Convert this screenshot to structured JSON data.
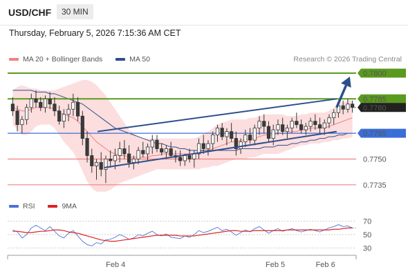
{
  "header": {
    "symbol": "USD/CHF",
    "timeframe": "30 MIN",
    "datetime": "Thursday, February 5, 2026 7:15:36 AM CET"
  },
  "legend": {
    "ma20_label": "MA 20 + Bollinger Bands",
    "ma50_label": "MA 50",
    "copyright": "Research © 2026 Trading Central"
  },
  "rsi_legend": {
    "rsi_label": "RSI",
    "ma9_label": "9MA"
  },
  "colors": {
    "bull_candle": "#3a3a3a",
    "bear_candle": "#3a3a3a",
    "bollinger_fill": "#fbd3d3",
    "ma20": "#f08080",
    "ma50": "#2c4f8c",
    "resistance": "#5a9a1e",
    "support": "#3a6fd8",
    "minor_support": "#f08080",
    "channel": "#2c4f8c",
    "rsi": "#4a72d6",
    "rsi_ma": "#e02020"
  },
  "chart_data": [
    {
      "type": "candlestick",
      "symbol": "USD/CHF",
      "timeframe": "30 MIN",
      "x_labels": [
        "Feb 4",
        "Feb 5",
        "Feb 6"
      ],
      "y_range": [
        0.77285,
        0.7804
      ],
      "levels": [
        {
          "value": 0.78,
          "label": "0.7800",
          "kind": "resistance",
          "style": "filled-green"
        },
        {
          "value": 0.7785,
          "label": "0.7785",
          "kind": "resistance",
          "style": "filled-green"
        },
        {
          "value": 0.778,
          "label": "0.7780",
          "kind": "current-price",
          "style": "filled-dark"
        },
        {
          "value": 0.7765,
          "label": "0.7765",
          "kind": "pivot",
          "style": "filled-blue"
        },
        {
          "value": 0.775,
          "label": "0.7750",
          "kind": "support",
          "style": "text-red"
        },
        {
          "value": 0.7735,
          "label": "0.7735",
          "kind": "support",
          "style": "text-red"
        }
      ],
      "candles_ohlc": [
        [
          0.7782,
          0.7786,
          0.7775,
          0.7778
        ],
        [
          0.7778,
          0.7781,
          0.7766,
          0.777
        ],
        [
          0.777,
          0.7775,
          0.7765,
          0.7773
        ],
        [
          0.7773,
          0.7782,
          0.777,
          0.778
        ],
        [
          0.778,
          0.7788,
          0.7777,
          0.7785
        ],
        [
          0.7785,
          0.779,
          0.778,
          0.7783
        ],
        [
          0.7783,
          0.7786,
          0.7778,
          0.778
        ],
        [
          0.778,
          0.7787,
          0.7777,
          0.7785
        ],
        [
          0.7785,
          0.7789,
          0.7779,
          0.7782
        ],
        [
          0.7782,
          0.7786,
          0.7775,
          0.7778
        ],
        [
          0.7778,
          0.7781,
          0.777,
          0.7772
        ],
        [
          0.7772,
          0.7779,
          0.7768,
          0.7776
        ],
        [
          0.7776,
          0.7782,
          0.7772,
          0.7779
        ],
        [
          0.7779,
          0.7788,
          0.7775,
          0.7783
        ],
        [
          0.7783,
          0.7786,
          0.7772,
          0.7775
        ],
        [
          0.7775,
          0.7778,
          0.7758,
          0.7762
        ],
        [
          0.7762,
          0.7766,
          0.7748,
          0.7752
        ],
        [
          0.7752,
          0.7756,
          0.7742,
          0.7746
        ],
        [
          0.7746,
          0.775,
          0.7738,
          0.7748
        ],
        [
          0.7748,
          0.7754,
          0.774,
          0.7744
        ],
        [
          0.7744,
          0.7752,
          0.7736,
          0.775
        ],
        [
          0.775,
          0.7755,
          0.7745,
          0.7749
        ],
        [
          0.7749,
          0.7756,
          0.7744,
          0.7752
        ],
        [
          0.7752,
          0.776,
          0.7748,
          0.7756
        ],
        [
          0.7756,
          0.7761,
          0.775,
          0.7753
        ],
        [
          0.7753,
          0.7758,
          0.7745,
          0.7748
        ],
        [
          0.7748,
          0.7752,
          0.7744,
          0.775
        ],
        [
          0.775,
          0.7757,
          0.7747,
          0.7755
        ],
        [
          0.7755,
          0.776,
          0.7751,
          0.7753
        ],
        [
          0.7753,
          0.7759,
          0.7749,
          0.7757
        ],
        [
          0.7757,
          0.7764,
          0.7753,
          0.7761
        ],
        [
          0.7761,
          0.7764,
          0.7754,
          0.7756
        ],
        [
          0.7756,
          0.7759,
          0.7752,
          0.7754
        ],
        [
          0.7754,
          0.7758,
          0.775,
          0.7756
        ],
        [
          0.7756,
          0.776,
          0.7751,
          0.7752
        ],
        [
          0.7752,
          0.7755,
          0.7748,
          0.7751
        ],
        [
          0.7751,
          0.7755,
          0.7746,
          0.7749
        ],
        [
          0.7749,
          0.7753,
          0.7746,
          0.7752
        ],
        [
          0.7752,
          0.7756,
          0.7748,
          0.775
        ],
        [
          0.775,
          0.7755,
          0.7745,
          0.7753
        ],
        [
          0.7753,
          0.7762,
          0.775,
          0.7759
        ],
        [
          0.7759,
          0.7764,
          0.7753,
          0.7756
        ],
        [
          0.7756,
          0.7761,
          0.7752,
          0.7759
        ],
        [
          0.7759,
          0.7766,
          0.7755,
          0.7764
        ],
        [
          0.7764,
          0.777,
          0.776,
          0.7768
        ],
        [
          0.7768,
          0.7771,
          0.7761,
          0.7763
        ],
        [
          0.7763,
          0.7768,
          0.7758,
          0.7766
        ],
        [
          0.7766,
          0.7771,
          0.776,
          0.7762
        ],
        [
          0.7762,
          0.7766,
          0.7752,
          0.7756
        ],
        [
          0.7756,
          0.7762,
          0.7753,
          0.776
        ],
        [
          0.776,
          0.7767,
          0.7757,
          0.7764
        ],
        [
          0.7764,
          0.7768,
          0.7759,
          0.7761
        ],
        [
          0.7761,
          0.777,
          0.7758,
          0.7768
        ],
        [
          0.7768,
          0.7775,
          0.7764,
          0.7772
        ],
        [
          0.7772,
          0.7776,
          0.7765,
          0.7769
        ],
        [
          0.7769,
          0.7772,
          0.776,
          0.7762
        ],
        [
          0.7762,
          0.777,
          0.7758,
          0.7767
        ],
        [
          0.7767,
          0.7773,
          0.7764,
          0.777
        ],
        [
          0.777,
          0.7774,
          0.7764,
          0.7766
        ],
        [
          0.7766,
          0.777,
          0.7762,
          0.7768
        ],
        [
          0.7768,
          0.7774,
          0.7765,
          0.7772
        ],
        [
          0.7772,
          0.7777,
          0.7768,
          0.777
        ],
        [
          0.777,
          0.7773,
          0.7765,
          0.7767
        ],
        [
          0.7767,
          0.7771,
          0.7764,
          0.7769
        ],
        [
          0.7769,
          0.7774,
          0.7766,
          0.7772
        ],
        [
          0.7772,
          0.7776,
          0.7767,
          0.777
        ],
        [
          0.777,
          0.7774,
          0.7765,
          0.7768
        ],
        [
          0.7768,
          0.7773,
          0.7764,
          0.7771
        ],
        [
          0.7771,
          0.7776,
          0.7768,
          0.7774
        ],
        [
          0.7774,
          0.7779,
          0.777,
          0.7777
        ],
        [
          0.7777,
          0.7783,
          0.7774,
          0.7781
        ],
        [
          0.7781,
          0.7784,
          0.7776,
          0.7779
        ],
        [
          0.7779,
          0.7785,
          0.7777,
          0.7782
        ],
        [
          0.7782,
          0.7784,
          0.7777,
          0.778
        ]
      ],
      "ma20": [
        0.778,
        0.7779,
        0.7778,
        0.7778,
        0.7779,
        0.778,
        0.778,
        0.778,
        0.778,
        0.7779,
        0.7777,
        0.7776,
        0.7775,
        0.7774,
        0.7772,
        0.7769,
        0.7766,
        0.7763,
        0.776,
        0.7758,
        0.7756,
        0.7754,
        0.7753,
        0.7752,
        0.7752,
        0.7751,
        0.7751,
        0.7751,
        0.7751,
        0.7751,
        0.7752,
        0.7752,
        0.7753,
        0.7753,
        0.7753,
        0.7753,
        0.7753,
        0.7753,
        0.7753,
        0.7753,
        0.7754,
        0.7755,
        0.7755,
        0.7756,
        0.7757,
        0.7758,
        0.7759,
        0.776,
        0.776,
        0.7761,
        0.7761,
        0.7762,
        0.7762,
        0.7763,
        0.7764,
        0.7764,
        0.7764,
        0.7765,
        0.7765,
        0.7765,
        0.7766,
        0.7766,
        0.7767,
        0.7767,
        0.7768,
        0.7768,
        0.7768,
        0.7768,
        0.7769,
        0.777,
        0.7771,
        0.7772,
        0.7773,
        0.7774
      ],
      "bollinger_upper": [
        0.779,
        0.7792,
        0.7793,
        0.7792,
        0.7791,
        0.7791,
        0.779,
        0.779,
        0.779,
        0.779,
        0.7791,
        0.7792,
        0.7793,
        0.7794,
        0.7795,
        0.7796,
        0.7796,
        0.7795,
        0.7793,
        0.779,
        0.7787,
        0.7783,
        0.7779,
        0.7775,
        0.7771,
        0.7767,
        0.7765,
        0.7763,
        0.7762,
        0.7762,
        0.7762,
        0.7762,
        0.7762,
        0.7762,
        0.7762,
        0.7762,
        0.7762,
        0.7762,
        0.7762,
        0.7762,
        0.7763,
        0.7765,
        0.7766,
        0.7768,
        0.777,
        0.7771,
        0.7772,
        0.7773,
        0.7773,
        0.7773,
        0.7773,
        0.7774,
        0.7774,
        0.7775,
        0.7776,
        0.7776,
        0.7776,
        0.7776,
        0.7776,
        0.7775,
        0.7775,
        0.7775,
        0.7776,
        0.7776,
        0.7777,
        0.7777,
        0.7777,
        0.7777,
        0.7778,
        0.778,
        0.7782,
        0.7783,
        0.7784,
        0.7784
      ],
      "bollinger_lower": [
        0.777,
        0.7767,
        0.7764,
        0.7764,
        0.7766,
        0.7769,
        0.777,
        0.777,
        0.777,
        0.7768,
        0.7764,
        0.776,
        0.7757,
        0.7754,
        0.7749,
        0.7743,
        0.7737,
        0.7733,
        0.7731,
        0.7731,
        0.7731,
        0.7732,
        0.7734,
        0.7736,
        0.7737,
        0.7738,
        0.7739,
        0.774,
        0.7741,
        0.7742,
        0.7743,
        0.7744,
        0.7744,
        0.7744,
        0.7744,
        0.7744,
        0.7744,
        0.7744,
        0.7744,
        0.7744,
        0.7744,
        0.7745,
        0.7745,
        0.7746,
        0.7746,
        0.7747,
        0.7748,
        0.7749,
        0.775,
        0.775,
        0.775,
        0.7751,
        0.7751,
        0.7752,
        0.7753,
        0.7753,
        0.7753,
        0.7753,
        0.7754,
        0.7755,
        0.7756,
        0.7757,
        0.7758,
        0.7758,
        0.7759,
        0.7759,
        0.7759,
        0.776,
        0.776,
        0.7761,
        0.7761,
        0.7762,
        0.7762,
        0.7763
      ],
      "ma50": [
        0.779,
        0.779,
        0.779,
        0.779,
        0.779,
        0.7789,
        0.7789,
        0.7789,
        0.7788,
        0.7788,
        0.7787,
        0.7786,
        0.7785,
        0.7784,
        0.7783,
        0.7782,
        0.778,
        0.7778,
        0.7776,
        0.7774,
        0.7772,
        0.777,
        0.7768,
        0.7767,
        0.7766,
        0.7765,
        0.7764,
        0.7763,
        0.7762,
        0.7761,
        0.776,
        0.7759,
        0.7759,
        0.7758,
        0.7757,
        0.7757,
        0.7756,
        0.7756,
        0.7755,
        0.7755,
        0.7755,
        0.7755,
        0.7755,
        0.7755,
        0.7755,
        0.7755,
        0.7755,
        0.7755,
        0.7755,
        0.7756,
        0.7756,
        0.7756,
        0.7756,
        0.7756,
        0.7757,
        0.7757,
        0.7757,
        0.7758,
        0.7758,
        0.7758,
        0.7759,
        0.7759,
        0.776,
        0.776,
        0.7761,
        0.7761,
        0.7762,
        0.7762,
        0.7763,
        0.7763,
        0.7764,
        0.7764,
        0.7765,
        0.7765
      ],
      "channel_upper": [
        [
          0.258,
          0.7766
        ],
        [
          0.944,
          0.7785
        ]
      ],
      "channel_lower": [
        [
          0.278,
          0.7745
        ],
        [
          0.944,
          0.7766
        ]
      ],
      "projection_arrow": [
        [
          0.944,
          0.778
        ],
        [
          0.982,
          0.7798
        ]
      ]
    },
    {
      "type": "line",
      "title": "RSI",
      "y_ticks": [
        30,
        50,
        70
      ],
      "y_range": [
        22,
        78
      ],
      "series": [
        {
          "name": "RSI",
          "values": [
            57,
            54,
            45,
            50,
            60,
            64,
            60,
            56,
            62,
            55,
            48,
            45,
            52,
            56,
            48,
            40,
            35,
            33,
            38,
            36,
            42,
            43,
            46,
            50,
            47,
            43,
            45,
            50,
            48,
            52,
            55,
            50,
            48,
            51,
            46,
            45,
            44,
            48,
            46,
            50,
            56,
            53,
            55,
            58,
            61,
            56,
            58,
            54,
            49,
            53,
            57,
            54,
            59,
            62,
            57,
            52,
            56,
            59,
            55,
            57,
            59,
            56,
            54,
            56,
            58,
            56,
            54,
            57,
            60,
            62,
            65,
            62,
            63,
            60
          ]
        },
        {
          "name": "9MA",
          "values": [
            55,
            55,
            54,
            53,
            53,
            54,
            55,
            55,
            56,
            57,
            57,
            56,
            54,
            53,
            52,
            50,
            48,
            46,
            44,
            42,
            41,
            40,
            40,
            41,
            42,
            43,
            44,
            45,
            46,
            47,
            48,
            49,
            49,
            49,
            49,
            49,
            48,
            48,
            48,
            48,
            49,
            50,
            51,
            52,
            53,
            54,
            55,
            56,
            56,
            55,
            55,
            55,
            56,
            56,
            56,
            56,
            56,
            56,
            56,
            57,
            57,
            57,
            57,
            57,
            57,
            57,
            57,
            57,
            57,
            58,
            58,
            59,
            60,
            60
          ]
        }
      ]
    }
  ]
}
